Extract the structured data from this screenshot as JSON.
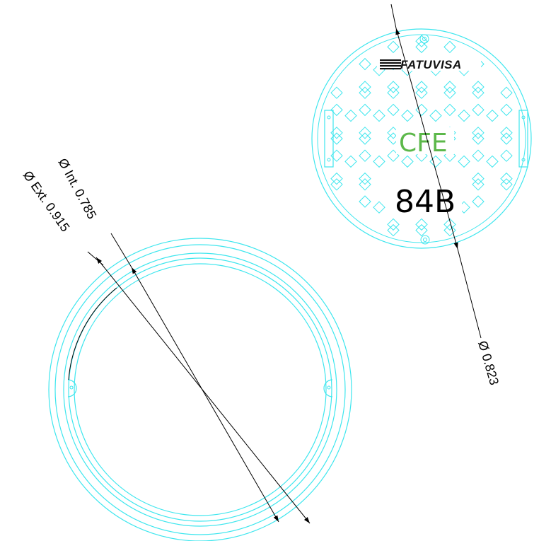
{
  "cover": {
    "brand": "FATUVISA",
    "utility": "CFE",
    "model": "84B",
    "diameter_label": "Ø 0.823"
  },
  "frame": {
    "internal_label": "Ø Int. 0.785",
    "external_label": "Ø Ext. 0.915"
  },
  "colors": {
    "outline": "#3ee6ee",
    "utility_text": "#5cb84a",
    "dimension": "#000000"
  }
}
